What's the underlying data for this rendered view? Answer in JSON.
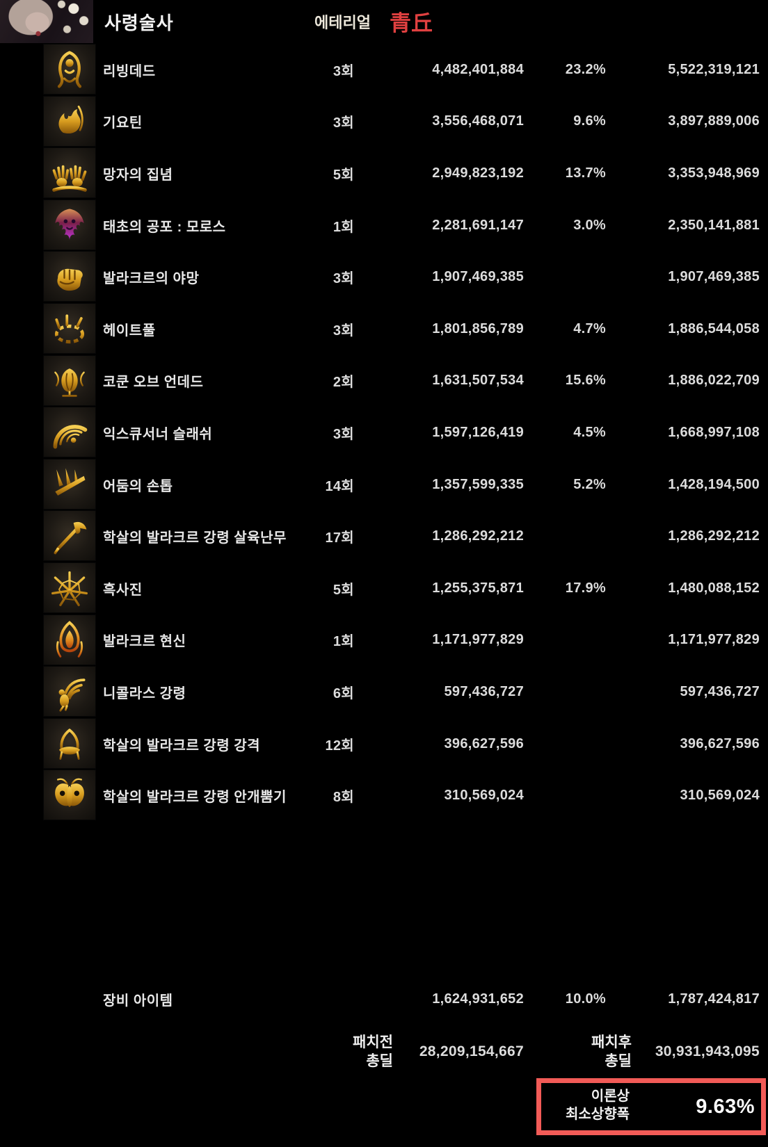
{
  "header": {
    "class_name": "사령술사",
    "subclass": "에테리얼",
    "server_tag": "青丘",
    "server_tag_color": "#e04040",
    "portrait": "necromancer-portrait"
  },
  "table": {
    "rows": [
      {
        "name": "리빙데드",
        "count": "3회",
        "before": "4,482,401,884",
        "percent": "23.2%",
        "after": "5,522,319,121",
        "icon": "living-dead",
        "glyph": "figure",
        "icon_palette": "gold"
      },
      {
        "name": "기요틴",
        "count": "3회",
        "before": "3,556,468,071",
        "percent": "9.6%",
        "after": "3,897,889,006",
        "icon": "guillotine",
        "glyph": "flame",
        "icon_palette": "gold"
      },
      {
        "name": "망자의 집념",
        "count": "5회",
        "before": "2,949,823,192",
        "percent": "13.7%",
        "after": "3,353,948,969",
        "icon": "dead-mans-tenacity",
        "glyph": "hands",
        "icon_palette": "gold"
      },
      {
        "name": "태초의 공포 : 모로스",
        "count": "1회",
        "before": "2,281,691,147",
        "percent": "3.0%",
        "after": "2,350,141,881",
        "icon": "primordial-fear-moros",
        "glyph": "demon-face",
        "icon_palette": "purple"
      },
      {
        "name": "발라크르의 야망",
        "count": "3회",
        "before": "1,907,469,385",
        "percent": "",
        "after": "1,907,469,385",
        "icon": "balacre-ambition",
        "glyph": "fist",
        "icon_palette": "gold"
      },
      {
        "name": "헤이트풀",
        "count": "3회",
        "before": "1,801,856,789",
        "percent": "4.7%",
        "after": "1,886,544,058",
        "icon": "hateful",
        "glyph": "claw-ring",
        "icon_palette": "gold"
      },
      {
        "name": "코쿤 오브 언데드",
        "count": "2회",
        "before": "1,631,507,534",
        "percent": "15.6%",
        "after": "1,886,022,709",
        "icon": "cocoon-of-undead",
        "glyph": "cocoon",
        "icon_palette": "gold"
      },
      {
        "name": "익스큐서너 슬래쉬",
        "count": "3회",
        "before": "1,597,126,419",
        "percent": "4.5%",
        "after": "1,668,997,108",
        "icon": "executioner-slash",
        "glyph": "arc-slash",
        "icon_palette": "gold"
      },
      {
        "name": "어둠의 손톱",
        "count": "14회",
        "before": "1,357,599,335",
        "percent": "5.2%",
        "after": "1,428,194,500",
        "icon": "dark-claw",
        "glyph": "claws",
        "icon_palette": "gold"
      },
      {
        "name": "학살의 발라크르 강령 살육난무",
        "count": "17회",
        "before": "1,286,292,212",
        "percent": "",
        "after": "1,286,292,212",
        "icon": "balacre-possession-massacre-dance",
        "glyph": "axe",
        "icon_palette": "gold"
      },
      {
        "name": "흑사진",
        "count": "5회",
        "before": "1,255,375,871",
        "percent": "17.9%",
        "after": "1,480,088,152",
        "icon": "black-death-array",
        "glyph": "star-array",
        "icon_palette": "gold"
      },
      {
        "name": "발라크르 현신",
        "count": "1회",
        "before": "1,171,977,829",
        "percent": "",
        "after": "1,171,977,829",
        "icon": "balacre-incarnation",
        "glyph": "avatar-flame",
        "icon_palette": "ember"
      },
      {
        "name": "니콜라스 강령",
        "count": "6회",
        "before": "597,436,727",
        "percent": "",
        "after": "597,436,727",
        "icon": "nicholas-possession",
        "glyph": "winged",
        "icon_palette": "gold"
      },
      {
        "name": "학살의 발라크르 강령 강격",
        "count": "12회",
        "before": "396,627,596",
        "percent": "",
        "after": "396,627,596",
        "icon": "balacre-possession-strike",
        "glyph": "burst",
        "icon_palette": "gold"
      },
      {
        "name": "학살의 발라크르 강령 안개뿜기",
        "count": "8회",
        "before": "310,569,024",
        "percent": "",
        "after": "310,569,024",
        "icon": "balacre-possession-mist",
        "glyph": "mask",
        "icon_palette": "gold"
      }
    ],
    "equipment_row": {
      "name": "장비 아이템",
      "before": "1,624,931,652",
      "percent": "10.0%",
      "after": "1,787,424,817"
    },
    "totals": {
      "before_label_line1": "패치전",
      "before_label_line2": "총딜",
      "before_value": "28,209,154,667",
      "after_label_line1": "패치후",
      "after_label_line2": "총딜",
      "after_value": "30,931,943,095"
    },
    "summary": {
      "label_line1": "이론상",
      "label_line2": "최소상향폭",
      "value": "9.63%",
      "box_color": "#f25b57"
    }
  }
}
